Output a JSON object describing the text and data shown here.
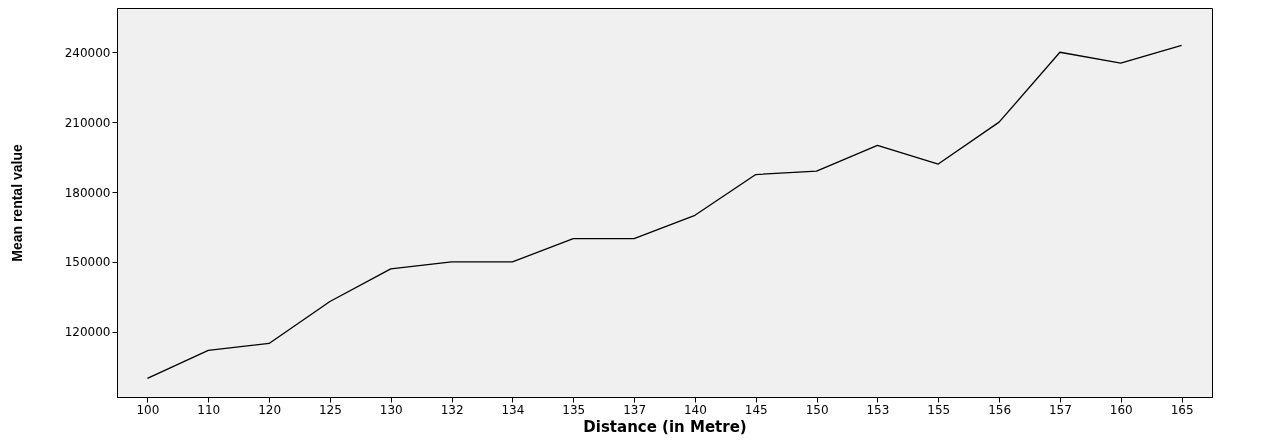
{
  "chart_data": {
    "type": "line",
    "xlabel": "Distance (in Metre)",
    "ylabel": "Mean rental value",
    "categories": [
      "100",
      "110",
      "120",
      "125",
      "130",
      "132",
      "134",
      "135",
      "137",
      "140",
      "145",
      "150",
      "153",
      "155",
      "156",
      "157",
      "160",
      "165"
    ],
    "series": [
      {
        "color": "#000000",
        "values": [
          100000,
          112000,
          115000,
          133000,
          147000,
          150000,
          150000,
          160000,
          160000,
          170000,
          187500,
          189000,
          200000,
          192000,
          210000,
          240000,
          235300,
          243000
        ]
      }
    ],
    "ylim": [
      92000,
      259000
    ],
    "yticks": [
      120000,
      150000,
      180000,
      210000,
      240000
    ],
    "grid": false,
    "legend": false,
    "marker": "none",
    "line_style": "solid"
  }
}
